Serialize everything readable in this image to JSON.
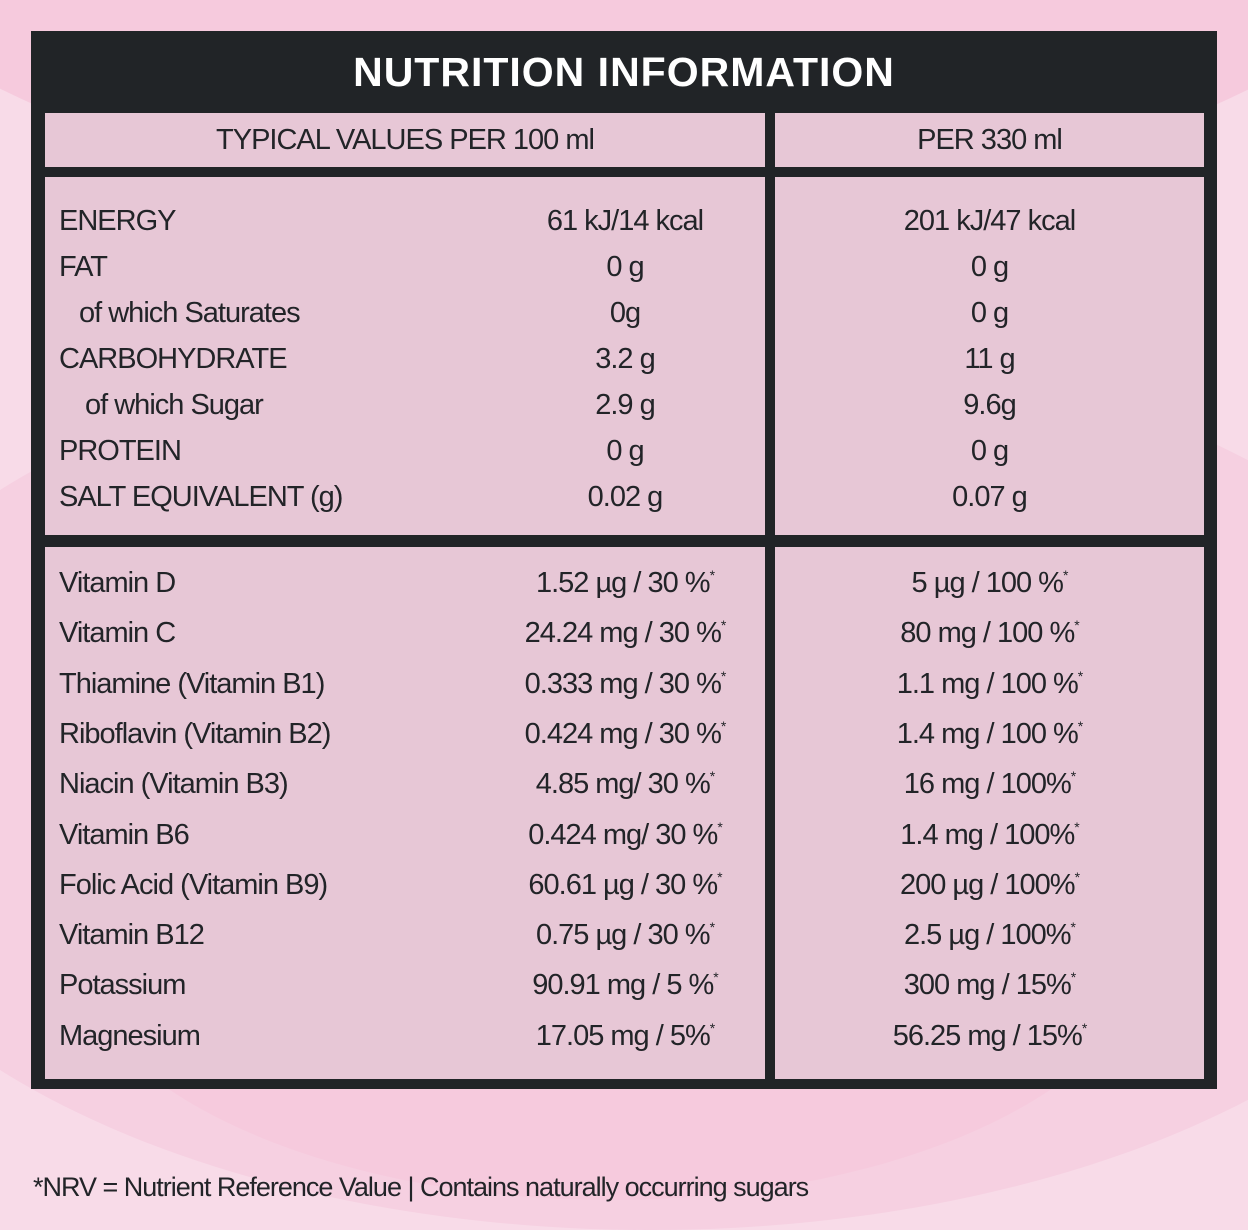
{
  "title": "NUTRITION INFORMATION",
  "headers": {
    "per100": "TYPICAL VALUES PER 100 ml",
    "per330": "PER 330 ml"
  },
  "nutrients": [
    {
      "label": "ENERGY",
      "per100": "61 kJ/14 kcal",
      "per330": "201 kJ/47 kcal",
      "indent": 0
    },
    {
      "label": "FAT",
      "per100": "0 g",
      "per330": "0 g",
      "indent": 0
    },
    {
      "label": "of which Saturates",
      "per100": "0g",
      "per330": "0 g",
      "indent": 1
    },
    {
      "label": "CARBOHYDRATE",
      "per100": "3.2 g",
      "per330": "11 g",
      "indent": 0
    },
    {
      "label": "of which  Sugar",
      "per100": "2.9 g",
      "per330": "9.6g",
      "indent": 2
    },
    {
      "label": "PROTEIN",
      "per100": "0 g",
      "per330": "0 g",
      "indent": 0
    },
    {
      "label": "SALT EQUIVALENT (g)",
      "per100": "0.02 g",
      "per330": "0.07 g",
      "indent": 0
    }
  ],
  "vitamins": [
    {
      "label": "Vitamin D",
      "per100": "1.52 µg / 30 %",
      "per330": "5 µg / 100 %"
    },
    {
      "label": "Vitamin C",
      "per100": "24.24 mg / 30 %",
      "per330": "80 mg / 100 %"
    },
    {
      "label": "Thiamine (Vitamin B1)",
      "per100": "0.333 mg / 30 %",
      "per330": "1.1 mg / 100 %"
    },
    {
      "label": "Riboflavin (Vitamin B2)",
      "per100": "0.424 mg / 30 %",
      "per330": "1.4 mg / 100 %"
    },
    {
      "label": "Niacin (Vitamin B3)",
      "per100": "4.85 mg/ 30 %",
      "per330": "16 mg / 100%"
    },
    {
      "label": "Vitamin B6",
      "per100": "0.424 mg/ 30 %",
      "per330": "1.4 mg / 100%"
    },
    {
      "label": "Folic Acid (Vitamin B9)",
      "per100": "60.61 µg / 30 %",
      "per330": "200 µg / 100%"
    },
    {
      "label": "Vitamin B12",
      "per100": "0.75 µg / 30 %",
      "per330": "2.5 µg / 100%"
    },
    {
      "label": "Potassium",
      "per100": "90.91 mg / 5 %",
      "per330": "300 mg / 15%"
    },
    {
      "label": "Magnesium",
      "per100": "17.05 mg / 5%",
      "per330": "56.25 mg / 15%"
    }
  ],
  "asterisk": "*",
  "footer": "*NRV = Nutrient Reference Value | Contains naturally occurring sugars",
  "colors": {
    "panel": "#212427",
    "background": "#f8dbe8",
    "accent": "#f5c4da"
  }
}
